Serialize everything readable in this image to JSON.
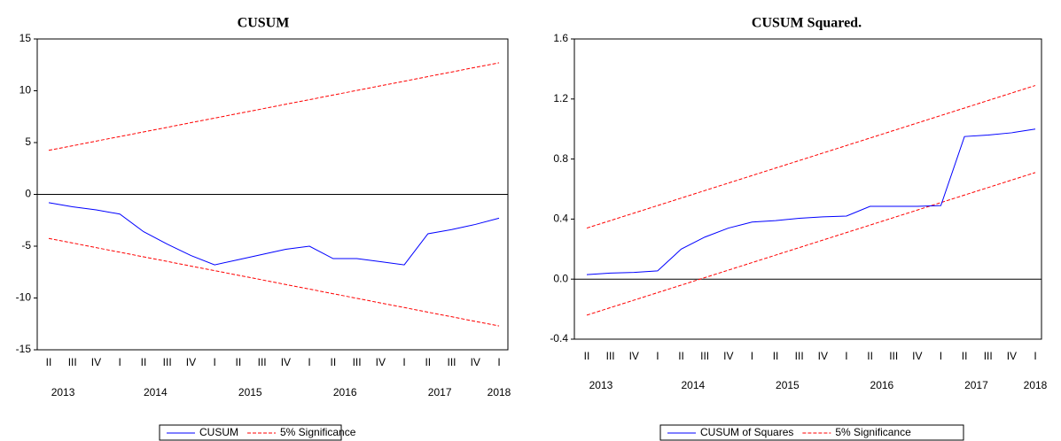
{
  "chart_data": [
    {
      "type": "line",
      "title": "CUSUM",
      "categories": [
        "II",
        "III",
        "IV",
        "I",
        "II",
        "III",
        "IV",
        "I",
        "II",
        "III",
        "IV",
        "I",
        "II",
        "III",
        "IV",
        "I",
        "II",
        "III",
        "IV",
        "I"
      ],
      "years": [
        "2013",
        "2014",
        "2015",
        "2016",
        "2017",
        "2018"
      ],
      "ylim": [
        -15,
        15
      ],
      "yticks": [
        -15,
        -10,
        -5,
        0,
        5,
        10,
        15
      ],
      "zero_line": true,
      "series": [
        {
          "name": "CUSUM",
          "color": "#0000ff",
          "values": [
            -0.8,
            -1.2,
            -1.5,
            -1.9,
            -3.6,
            -4.8,
            -5.9,
            -6.8,
            -6.3,
            -5.8,
            -5.3,
            -5.0,
            -6.2,
            -6.2,
            -6.5,
            -6.8,
            -3.8,
            -3.4,
            -2.9,
            -2.3
          ]
        }
      ],
      "bands": {
        "name": "5% Significance",
        "color": "#ff0000",
        "upper": [
          4.25,
          4.69,
          5.14,
          5.58,
          6.03,
          6.47,
          6.92,
          7.36,
          7.81,
          8.25,
          8.7,
          9.14,
          9.59,
          10.03,
          10.48,
          10.92,
          11.37,
          11.81,
          12.26,
          12.7
        ],
        "lower": [
          -4.25,
          -4.69,
          -5.14,
          -5.58,
          -6.03,
          -6.47,
          -6.92,
          -7.36,
          -7.81,
          -8.25,
          -8.7,
          -9.14,
          -9.59,
          -10.03,
          -10.48,
          -10.92,
          -11.37,
          -11.81,
          -12.26,
          -12.7
        ]
      }
    },
    {
      "type": "line",
      "title": "CUSUM Squared.",
      "categories": [
        "II",
        "III",
        "IV",
        "I",
        "II",
        "III",
        "IV",
        "I",
        "II",
        "III",
        "IV",
        "I",
        "II",
        "III",
        "IV",
        "I",
        "II",
        "III",
        "IV",
        "I"
      ],
      "years": [
        "2013",
        "2014",
        "2015",
        "2016",
        "2017",
        "2018"
      ],
      "ylim": [
        -0.4,
        1.6
      ],
      "yticks": [
        -0.4,
        {
          "value": 0,
          "label": "0.0"
        },
        0.4,
        0.8,
        1.2,
        1.6
      ],
      "zero_line": true,
      "series": [
        {
          "name": "CUSUM of Squares",
          "color": "#0000ff",
          "values": [
            0.03,
            0.04,
            0.045,
            0.055,
            0.2,
            0.28,
            0.34,
            0.38,
            0.39,
            0.405,
            0.415,
            0.42,
            0.485,
            0.485,
            0.485,
            0.49,
            0.95,
            0.96,
            0.975,
            1.0
          ]
        }
      ],
      "bands": {
        "name": "5% Significance",
        "color": "#ff0000",
        "upper": [
          0.34,
          0.39,
          0.44,
          0.49,
          0.54,
          0.59,
          0.64,
          0.69,
          0.74,
          0.79,
          0.84,
          0.89,
          0.94,
          0.99,
          1.04,
          1.09,
          1.14,
          1.19,
          1.24,
          1.29
        ],
        "lower": [
          -0.24,
          -0.19,
          -0.14,
          -0.09,
          -0.04,
          0.01,
          0.06,
          0.11,
          0.16,
          0.21,
          0.26,
          0.31,
          0.36,
          0.41,
          0.46,
          0.51,
          0.56,
          0.61,
          0.66,
          0.71
        ]
      }
    }
  ]
}
